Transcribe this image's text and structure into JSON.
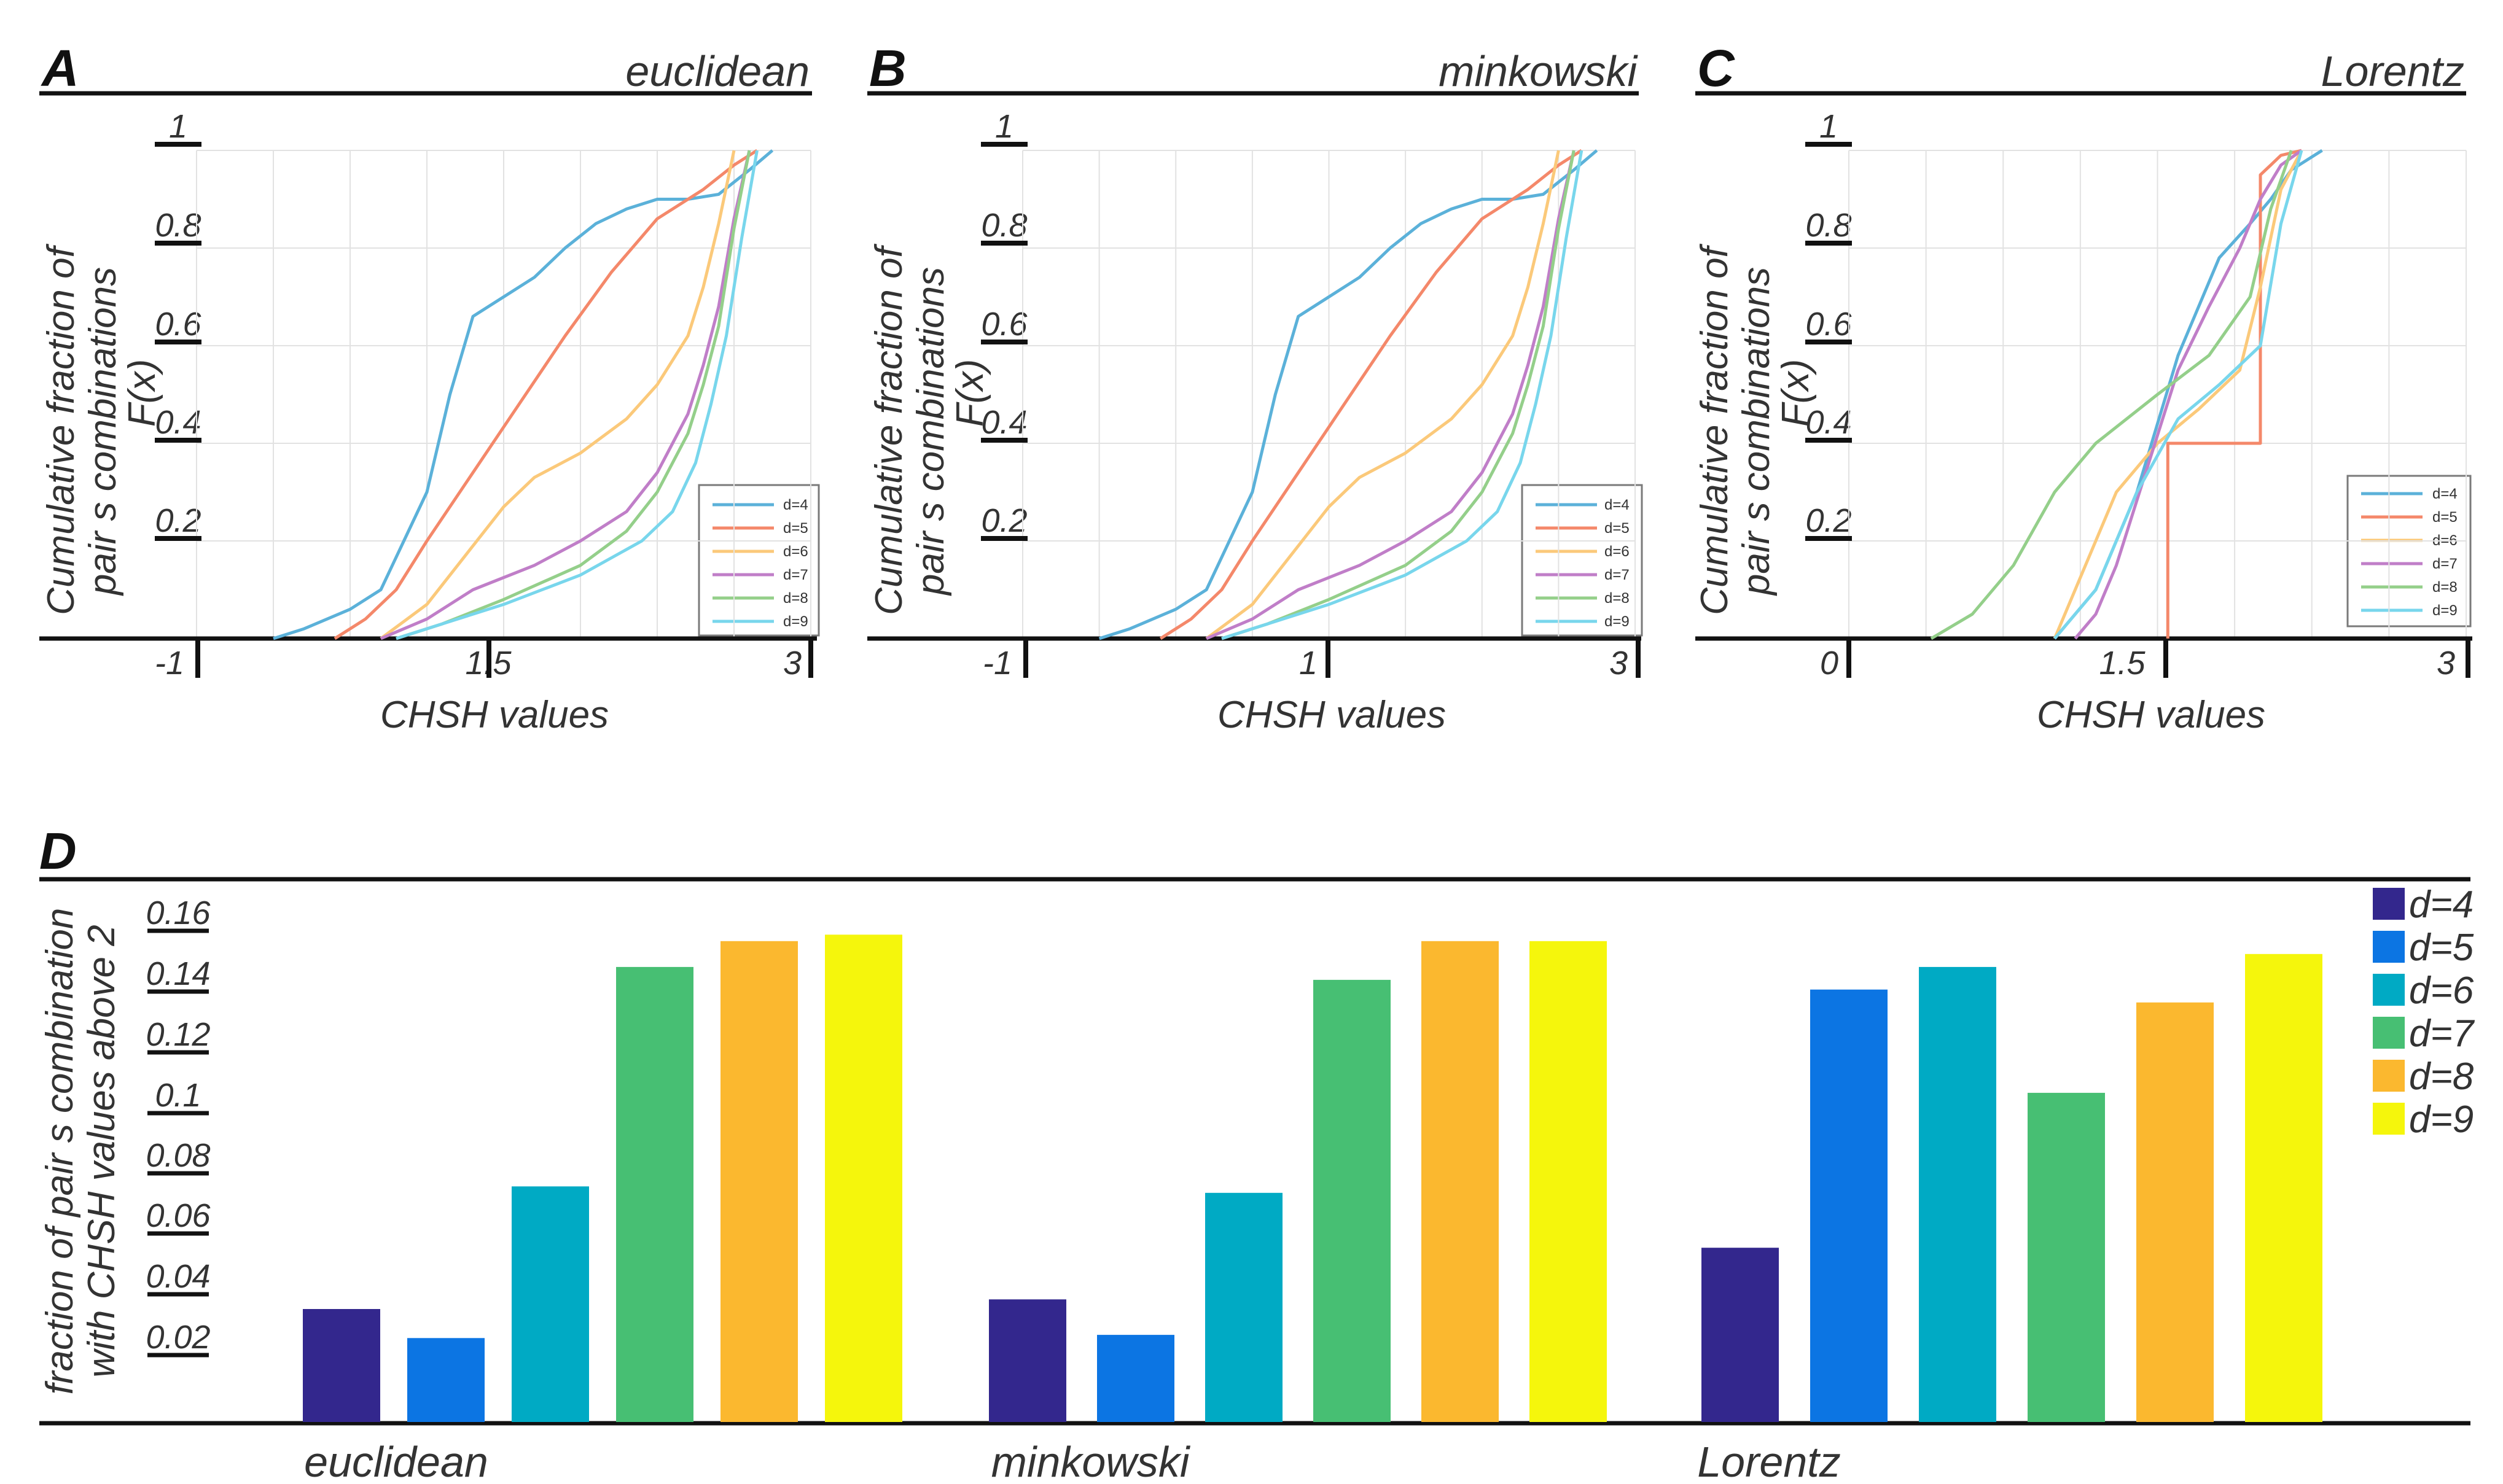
{
  "colors": {
    "d4": "#5bb1d9",
    "d5": "#f4886a",
    "d6": "#fbc97a",
    "d7": "#c07ec8",
    "d8": "#94cf8a",
    "d9": "#78d6ec",
    "bar_d4": "#33278d",
    "bar_d5": "#0c75e3",
    "bar_d6": "#00aac4",
    "bar_d7": "#47bf73",
    "bar_d8": "#fbb82f",
    "bar_d9": "#f5f60c"
  },
  "panels": [
    {
      "letter": "A",
      "title": "euclidean",
      "ylabel_line1": "Cumulative fraction of",
      "ylabel_line2": "pair s combinations",
      "ylabel_fx": "F(x)",
      "xlabel": "CHSH values",
      "yticks": [
        "1",
        "0.8",
        "0.6",
        "0.4",
        "0.2"
      ],
      "xticks": [
        "-1",
        "1.5",
        "3"
      ],
      "legend": [
        "d=4",
        "d=5",
        "d=6",
        "d=7",
        "d=8",
        "d=9"
      ]
    },
    {
      "letter": "B",
      "title": "minkowski",
      "ylabel_line1": "Cumulative fraction of",
      "ylabel_line2": "pair s combinations",
      "ylabel_fx": "F(x)",
      "xlabel": "CHSH values",
      "yticks": [
        "1",
        "0.8",
        "0.6",
        "0.4",
        "0.2"
      ],
      "xticks": [
        "-1",
        "1",
        "3"
      ],
      "legend": [
        "d=4",
        "d=5",
        "d=6",
        "d=7",
        "d=8",
        "d=9"
      ]
    },
    {
      "letter": "C",
      "title": "Lorentz",
      "ylabel_line1": "Cumulative fraction of",
      "ylabel_line2": "pair s combinations",
      "ylabel_fx": "F(x)",
      "xlabel": "CHSH values",
      "yticks": [
        "1",
        "0.8",
        "0.6",
        "0.4",
        "0.2"
      ],
      "xticks": [
        "0",
        "1.5",
        "3"
      ],
      "legend": [
        "d=4",
        "d=5",
        "d=6",
        "d=7",
        "d=8",
        "d=9"
      ]
    }
  ],
  "chart_data": [
    {
      "type": "line",
      "title": "euclidean",
      "xlabel": "CHSH values",
      "ylabel": "Cumulative fraction of pair s combinations F(x)",
      "xlim": [
        -1,
        3
      ],
      "ylim": [
        0,
        1
      ],
      "series": [
        {
          "name": "d=4",
          "x": [
            -0.5,
            -0.3,
            0.0,
            0.2,
            0.35,
            0.5,
            0.65,
            0.8,
            1.0,
            1.2,
            1.4,
            1.6,
            1.8,
            2.0,
            2.2,
            2.4,
            2.6,
            2.75
          ],
          "y": [
            0,
            0.02,
            0.06,
            0.1,
            0.2,
            0.3,
            0.5,
            0.66,
            0.7,
            0.74,
            0.8,
            0.85,
            0.88,
            0.9,
            0.9,
            0.91,
            0.96,
            1
          ]
        },
        {
          "name": "d=5",
          "x": [
            -0.1,
            0.1,
            0.3,
            0.5,
            0.8,
            1.1,
            1.4,
            1.7,
            2.0,
            2.3,
            2.5,
            2.65
          ],
          "y": [
            0,
            0.04,
            0.1,
            0.2,
            0.34,
            0.48,
            0.62,
            0.75,
            0.86,
            0.92,
            0.97,
            1
          ]
        },
        {
          "name": "d=6",
          "x": [
            0.2,
            0.5,
            0.8,
            1.0,
            1.2,
            1.5,
            1.8,
            2.0,
            2.2,
            2.3,
            2.4,
            2.5
          ],
          "y": [
            0,
            0.07,
            0.19,
            0.27,
            0.33,
            0.38,
            0.45,
            0.52,
            0.62,
            0.72,
            0.85,
            1
          ]
        },
        {
          "name": "d=7",
          "x": [
            0.2,
            0.5,
            0.8,
            1.2,
            1.5,
            1.8,
            2.0,
            2.2,
            2.3,
            2.4,
            2.5,
            2.6
          ],
          "y": [
            0,
            0.04,
            0.1,
            0.15,
            0.2,
            0.26,
            0.34,
            0.46,
            0.56,
            0.68,
            0.86,
            1
          ]
        },
        {
          "name": "d=8",
          "x": [
            0.3,
            0.6,
            1.0,
            1.5,
            1.8,
            2.0,
            2.2,
            2.3,
            2.4,
            2.5,
            2.6
          ],
          "y": [
            0,
            0.03,
            0.08,
            0.15,
            0.22,
            0.3,
            0.42,
            0.52,
            0.64,
            0.84,
            1
          ]
        },
        {
          "name": "d=9",
          "x": [
            0.3,
            0.6,
            1.0,
            1.5,
            1.9,
            2.1,
            2.25,
            2.35,
            2.45,
            2.55,
            2.65
          ],
          "y": [
            0,
            0.03,
            0.07,
            0.13,
            0.2,
            0.26,
            0.36,
            0.48,
            0.62,
            0.82,
            1
          ]
        }
      ]
    },
    {
      "type": "line",
      "title": "minkowski",
      "xlabel": "CHSH values",
      "ylabel": "Cumulative fraction of pair s combinations F(x)",
      "xlim": [
        -1,
        3
      ],
      "ylim": [
        0,
        1
      ],
      "series": [
        {
          "name": "d=4",
          "x": [
            -0.5,
            -0.3,
            0.0,
            0.2,
            0.35,
            0.5,
            0.65,
            0.8,
            1.0,
            1.2,
            1.4,
            1.6,
            1.8,
            2.0,
            2.2,
            2.4,
            2.6,
            2.75
          ],
          "y": [
            0,
            0.02,
            0.06,
            0.1,
            0.2,
            0.3,
            0.5,
            0.66,
            0.7,
            0.74,
            0.8,
            0.85,
            0.88,
            0.9,
            0.9,
            0.91,
            0.96,
            1
          ]
        },
        {
          "name": "d=5",
          "x": [
            -0.1,
            0.1,
            0.3,
            0.5,
            0.8,
            1.1,
            1.4,
            1.7,
            2.0,
            2.3,
            2.5,
            2.65
          ],
          "y": [
            0,
            0.04,
            0.1,
            0.2,
            0.34,
            0.48,
            0.62,
            0.75,
            0.86,
            0.92,
            0.97,
            1
          ]
        },
        {
          "name": "d=6",
          "x": [
            0.2,
            0.5,
            0.8,
            1.0,
            1.2,
            1.5,
            1.8,
            2.0,
            2.2,
            2.3,
            2.4,
            2.5
          ],
          "y": [
            0,
            0.07,
            0.19,
            0.27,
            0.33,
            0.38,
            0.45,
            0.52,
            0.62,
            0.72,
            0.85,
            1
          ]
        },
        {
          "name": "d=7",
          "x": [
            0.2,
            0.5,
            0.8,
            1.2,
            1.5,
            1.8,
            2.0,
            2.2,
            2.3,
            2.4,
            2.5,
            2.6
          ],
          "y": [
            0,
            0.04,
            0.1,
            0.15,
            0.2,
            0.26,
            0.34,
            0.46,
            0.56,
            0.68,
            0.86,
            1
          ]
        },
        {
          "name": "d=8",
          "x": [
            0.3,
            0.6,
            1.0,
            1.5,
            1.8,
            2.0,
            2.2,
            2.3,
            2.4,
            2.5,
            2.6
          ],
          "y": [
            0,
            0.03,
            0.08,
            0.15,
            0.22,
            0.3,
            0.42,
            0.52,
            0.64,
            0.84,
            1
          ]
        },
        {
          "name": "d=9",
          "x": [
            0.3,
            0.6,
            1.0,
            1.5,
            1.9,
            2.1,
            2.25,
            2.35,
            2.45,
            2.55,
            2.65
          ],
          "y": [
            0,
            0.03,
            0.07,
            0.13,
            0.2,
            0.26,
            0.36,
            0.48,
            0.62,
            0.82,
            1
          ]
        }
      ]
    },
    {
      "type": "line",
      "title": "Lorentz",
      "xlabel": "CHSH values",
      "ylabel": "Cumulative fraction of pair s combinations F(x)",
      "xlim": [
        0,
        3
      ],
      "ylim": [
        0,
        1
      ],
      "series": [
        {
          "name": "d=4",
          "x": [
            1.0,
            1.2,
            1.4,
            1.6,
            1.8,
            1.95,
            2.05,
            2.15,
            2.3
          ],
          "y": [
            0,
            0.1,
            0.3,
            0.58,
            0.78,
            0.85,
            0.9,
            0.96,
            1
          ]
        },
        {
          "name": "d=5",
          "x": [
            1.55,
            1.55,
            2.0,
            2.0,
            2.05,
            2.1,
            2.2
          ],
          "y": [
            0,
            0.4,
            0.4,
            0.95,
            0.97,
            0.99,
            1
          ]
        },
        {
          "name": "d=6",
          "x": [
            1.0,
            1.1,
            1.3,
            1.5,
            1.7,
            1.9,
            2.0,
            2.1,
            2.2
          ],
          "y": [
            0,
            0.1,
            0.3,
            0.4,
            0.47,
            0.55,
            0.72,
            0.92,
            1
          ]
        },
        {
          "name": "d=7",
          "x": [
            1.1,
            1.2,
            1.3,
            1.45,
            1.6,
            1.75,
            1.9,
            2.0,
            2.1,
            2.2
          ],
          "y": [
            0,
            0.05,
            0.15,
            0.35,
            0.55,
            0.68,
            0.8,
            0.9,
            0.97,
            1
          ]
        },
        {
          "name": "d=8",
          "x": [
            0.4,
            0.6,
            0.8,
            1.0,
            1.2,
            1.5,
            1.75,
            1.95,
            2.05,
            2.15
          ],
          "y": [
            0,
            0.05,
            0.15,
            0.3,
            0.4,
            0.5,
            0.58,
            0.7,
            0.88,
            1
          ]
        },
        {
          "name": "d=9",
          "x": [
            1.0,
            1.2,
            1.4,
            1.6,
            1.8,
            2.0,
            2.1,
            2.2
          ],
          "y": [
            0,
            0.1,
            0.3,
            0.45,
            0.52,
            0.6,
            0.85,
            1
          ]
        }
      ]
    },
    {
      "type": "bar",
      "letter": "D",
      "ylabel_line1": "fraction of pair s combination",
      "ylabel_line2": "with CHSH values above 2",
      "ylim": [
        0,
        0.16
      ],
      "yticks": [
        "0.16",
        "0.14",
        "0.12",
        "0.1",
        "0.08",
        "0.06",
        "0.04",
        "0.02"
      ],
      "categories": [
        "euclidean",
        "minkowski",
        "Lorentz"
      ],
      "series": [
        {
          "name": "d=4",
          "values": [
            0.035,
            0.038,
            0.054
          ]
        },
        {
          "name": "d=5",
          "values": [
            0.026,
            0.027,
            0.134
          ]
        },
        {
          "name": "d=6",
          "values": [
            0.073,
            0.071,
            0.141
          ]
        },
        {
          "name": "d=7",
          "values": [
            0.141,
            0.137,
            0.102
          ]
        },
        {
          "name": "d=8",
          "values": [
            0.149,
            0.149,
            0.13
          ]
        },
        {
          "name": "d=9",
          "values": [
            0.151,
            0.149,
            0.145
          ]
        }
      ]
    }
  ]
}
